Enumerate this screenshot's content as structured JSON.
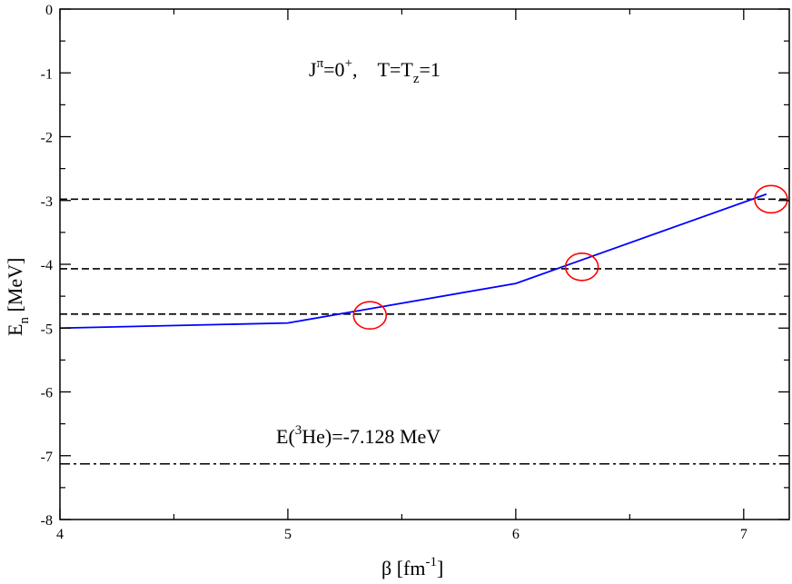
{
  "chart_data": {
    "type": "line",
    "xlabel": {
      "main": "β [fm",
      "sup": "-1",
      "end": "]"
    },
    "ylabel": {
      "main": "E",
      "sub": "n",
      "end": " [MeV]"
    },
    "xlim": [
      4,
      7.2
    ],
    "ylim": [
      -8,
      0
    ],
    "xticks": [
      4,
      5,
      6,
      7
    ],
    "yticks": [
      0,
      -1,
      -2,
      -3,
      -4,
      -5,
      -6,
      -7,
      -8
    ],
    "annotations": {
      "quantum": {
        "j": "J",
        "pi": "π",
        "eq0": "=0",
        "plus": "+",
        "sep": ",    T=T",
        "z": "z",
        "eq1": "=1"
      },
      "he3": {
        "pre": "E(",
        "three": "3",
        "post": "He)=-7.128 MeV"
      }
    },
    "series": [
      {
        "color": "#0000ff",
        "style": "solid",
        "x": [
          4,
          5,
          6,
          7.1
        ],
        "y": [
          -5.0,
          -4.92,
          -4.3,
          -2.9
        ]
      }
    ],
    "hlines": [
      {
        "y": -2.98,
        "style": "dashed",
        "color": "#000000"
      },
      {
        "y": -4.07,
        "style": "dashed",
        "color": "#000000"
      },
      {
        "y": -4.78,
        "style": "dashed",
        "color": "#000000"
      },
      {
        "y": -7.128,
        "style": "dash-dot",
        "color": "#000000"
      }
    ],
    "markers": [
      {
        "x": 5.36,
        "y": -4.8,
        "color": "#ff0000"
      },
      {
        "x": 6.29,
        "y": -4.04,
        "color": "#ff0000"
      },
      {
        "x": 7.12,
        "y": -2.98,
        "color": "#ff0000"
      }
    ],
    "grid": false,
    "legend": "none"
  }
}
